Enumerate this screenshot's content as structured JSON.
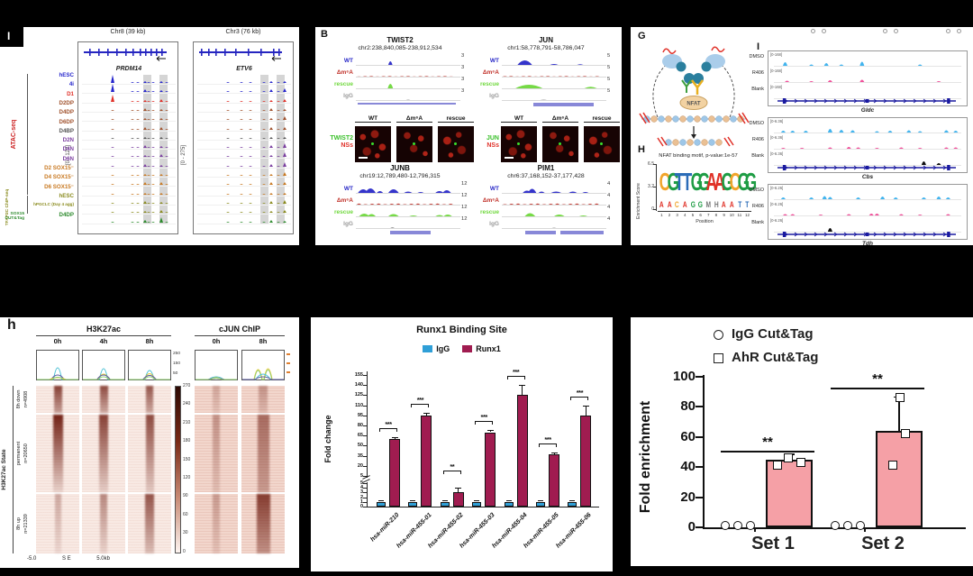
{
  "figure": {
    "atac_panel": {
      "label": "I",
      "regions": [
        {
          "chrom_label": "Chr8 (39 kb)",
          "gene": "PRDM14",
          "scale": "[0 - 122]"
        },
        {
          "chrom_label": "Chr3 (76 kb)",
          "gene": "ETV6",
          "scale": "[0 - 275]"
        }
      ],
      "groups": [
        {
          "name": "ATAC-seq",
          "color": "#cc2222"
        },
        {
          "name": "TFAP2C ChIP-seq",
          "color": "#8a8b1e"
        },
        {
          "name": "SOX15 CUT&Tag",
          "color": "#2e8b2e"
        }
      ],
      "tracks": [
        {
          "label": "hESC",
          "color": "#2626cc"
        },
        {
          "label": "4i",
          "color": "#2626cc"
        },
        {
          "label": "D1",
          "color": "#e03028"
        },
        {
          "label": "D2DP",
          "color": "#a0522d"
        },
        {
          "label": "D4DP",
          "color": "#a0522d"
        },
        {
          "label": "D6DP",
          "color": "#a0522d"
        },
        {
          "label": "D4BP",
          "color": "#555555"
        },
        {
          "label": "D2N",
          "color": "#7b3fa0"
        },
        {
          "label": "D4N",
          "color": "#7b3fa0"
        },
        {
          "label": "D6N",
          "color": "#7b3fa0"
        },
        {
          "label": "D2 SOX15⁻",
          "color": "#c87820"
        },
        {
          "label": "D4 SOX15⁻",
          "color": "#c87820"
        },
        {
          "label": "D6 SOX15⁻",
          "color": "#c87820"
        },
        {
          "label": "hESC",
          "color": "#8a8b1e"
        },
        {
          "label": "hPGCLC (Day 4 agg)",
          "color": "#8a8b1e"
        },
        {
          "label": "D4DP",
          "color": "#2e8b2e"
        }
      ]
    },
    "b_panel": {
      "label": "B",
      "track_labels": [
        {
          "label": "WT",
          "color": "#2a2ac8"
        },
        {
          "label": "Δm⁶A",
          "color": "#c03028"
        },
        {
          "label": "rescue",
          "color": "#6fd83c"
        },
        {
          "label": "IgG",
          "color": "#9a9a9a"
        }
      ],
      "genes": [
        {
          "name": "TWIST2",
          "coords": "chr2:238,840,085-238,912,534",
          "scale": "3"
        },
        {
          "name": "JUN",
          "coords": "chr1:58,778,791-58,786,047",
          "scale": "5"
        },
        {
          "name": "JUNB",
          "coords": "chr19:12,789,480-12,796,315",
          "scale": "12"
        },
        {
          "name": "PIM1",
          "coords": "chr6:37,168,152-37,177,428",
          "scale": "4"
        }
      ],
      "imaging_cols": [
        "WT",
        "Δm⁶A",
        "rescue"
      ],
      "imaging_rows": [
        {
          "marker": "TWIST2",
          "stain": "NSs"
        },
        {
          "marker": "JUN",
          "stain": "NSs"
        }
      ]
    },
    "g_panel": {
      "label": "G",
      "nfat_label": "NFAT"
    },
    "h_motif_panel": {
      "label": "H",
      "title": "NFAT binding motif, p-value:1e-57",
      "ylabel": "Enrichment Score",
      "yticks": [
        "6.5",
        "3.2",
        "0"
      ],
      "xlabel": "Position",
      "xticks": [
        "1",
        "2",
        "3",
        "4",
        "5",
        "6",
        "7",
        "8",
        "9",
        "10",
        "11",
        "12"
      ],
      "logo_row1": "CGTTGGAAGCGG",
      "logo_row2": "AACAGGMHAATT"
    },
    "i_panel": {
      "label": "I",
      "conditions": [
        "DMSO",
        "R406",
        "Blank"
      ],
      "groups": [
        {
          "gene": "Gldc",
          "scale": "[0-168]"
        },
        {
          "gene": "Cbs",
          "scale": "[0-6.36]"
        },
        {
          "gene": "Tdh",
          "scale": "[0-6.26]"
        }
      ]
    },
    "heatmap_panel": {
      "label": "h",
      "left_title": "H3K27ac",
      "right_title": "cJUN ChIP",
      "left_cols": [
        "0h",
        "4h",
        "8h"
      ],
      "right_cols": [
        "0h",
        "8h"
      ],
      "profile_yticks": [
        "250",
        "150",
        "50"
      ],
      "side_label": "H3K27ac State",
      "row_blocks": [
        {
          "label": "8h down",
          "n": "n=4908"
        },
        {
          "label": "permanent",
          "n": "n=20650"
        },
        {
          "label": "8h up",
          "n": "n=21339"
        }
      ],
      "colorbar_ticks": [
        "270",
        "240",
        "210",
        "180",
        "150",
        "120",
        "90",
        "60",
        "30",
        "0"
      ],
      "x_axis": {
        "left": "-5.0",
        "mid": "S E",
        "right": "5.0kb"
      }
    }
  },
  "chart_data": [
    {
      "id": "runx1_binding",
      "type": "bar",
      "title": "Runx1 Binding Site",
      "ylabel": "Fold change",
      "categories": [
        "hsa-miR-210",
        "hsa-miR-455-01",
        "hsa-miR-455-02",
        "hsa-miR-455-03",
        "hsa-miR-455-04",
        "hsa-miR-455-05",
        "hsa-miR-455-06"
      ],
      "series": [
        {
          "name": "IgG",
          "color": "#2f9fd7",
          "values": [
            1,
            1,
            1,
            1,
            1,
            1,
            1
          ]
        },
        {
          "name": "Runx1",
          "color": "#a01c50",
          "values": [
            60,
            95,
            3,
            70,
            125,
            37,
            95
          ]
        }
      ],
      "runx1_errors": [
        3,
        4,
        1,
        3,
        15,
        3,
        14
      ],
      "significance": [
        "***",
        "***",
        "**",
        "***",
        "***",
        "***",
        "***"
      ],
      "axis_break": true,
      "yticks_upper": [
        155,
        140,
        125,
        110,
        95,
        80,
        65,
        50,
        35,
        20,
        5
      ],
      "yticks_lower": [
        5,
        4,
        3,
        2,
        1,
        0
      ],
      "legend_position": "top"
    },
    {
      "id": "ahr_cuttag",
      "type": "bar",
      "ylabel": "Fold enrichment",
      "ylim": [
        0,
        100
      ],
      "yticks": [
        0,
        20,
        40,
        60,
        80,
        100
      ],
      "categories": [
        "Set 1",
        "Set 2"
      ],
      "legend": [
        {
          "name": "IgG Cut&Tag",
          "marker": "circle"
        },
        {
          "name": "AhR Cut&Tag",
          "marker": "square"
        }
      ],
      "series": [
        {
          "name": "IgG Cut&Tag",
          "values": [
            0.5,
            0.5
          ]
        },
        {
          "name": "AhR Cut&Tag",
          "values": [
            45,
            64
          ]
        }
      ],
      "ahr_points": [
        [
          42,
          47,
          44
        ],
        [
          42,
          63,
          87
        ]
      ],
      "ahr_error_top": [
        49,
        87
      ],
      "significance": [
        "**",
        "**"
      ],
      "bar_color": "#f5a0a6"
    }
  ]
}
